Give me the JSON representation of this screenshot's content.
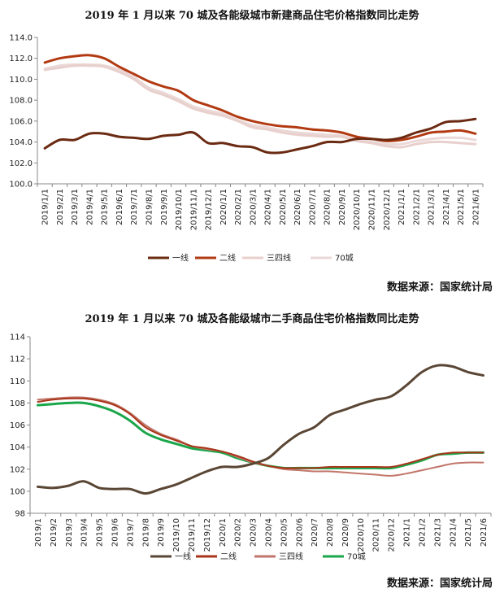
{
  "chart_data": [
    {
      "type": "line",
      "title": "2019 年 1 月以来 70 城及各能级城市新建商品住宅价格指数同比走势",
      "source": "数据来源：国家统计局",
      "xlabel": "",
      "ylabel": "",
      "ylim": [
        100.0,
        114.0
      ],
      "yticks": [
        "100.0",
        "102.0",
        "104.0",
        "106.0",
        "108.0",
        "110.0",
        "112.0",
        "114.0"
      ],
      "x": [
        "2019/1/1",
        "2019/2/1",
        "2019/3/1",
        "2019/4/1",
        "2019/5/1",
        "2019/6/1",
        "2019/7/1",
        "2019/8/1",
        "2019/9/1",
        "2019/10/1",
        "2019/11/1",
        "2019/12/1",
        "2020/1/1",
        "2020/2/1",
        "2020/3/1",
        "2020/4/1",
        "2020/5/1",
        "2020/6/1",
        "2020/7/1",
        "2020/8/1",
        "2020/9/1",
        "2020/10/1",
        "2020/11/1",
        "2020/12/1",
        "2021/1/1",
        "2021/2/1",
        "2021/3/1",
        "2021/4/1",
        "2021/5/1",
        "2021/6/1"
      ],
      "grid": false,
      "legend_position": "bottom",
      "series": [
        {
          "name": "一线",
          "color": "#6b2a12",
          "width": 3,
          "values": [
            103.4,
            104.2,
            104.2,
            104.8,
            104.8,
            104.5,
            104.4,
            104.3,
            104.6,
            104.7,
            104.9,
            103.9,
            103.9,
            103.6,
            103.5,
            103.0,
            103.0,
            103.3,
            103.6,
            104.0,
            104.0,
            104.3,
            104.3,
            104.2,
            104.4,
            104.9,
            105.3,
            105.9,
            106.0,
            106.2
          ]
        },
        {
          "name": "二线",
          "color": "#b23a12",
          "width": 3,
          "values": [
            111.6,
            112.0,
            112.2,
            112.3,
            112.0,
            111.2,
            110.5,
            109.8,
            109.3,
            108.9,
            108.0,
            107.5,
            107.0,
            106.4,
            106.0,
            105.7,
            105.5,
            105.4,
            105.2,
            105.1,
            104.9,
            104.5,
            104.3,
            104.1,
            104.2,
            104.5,
            104.9,
            105.0,
            105.1,
            104.8
          ]
        },
        {
          "name": "三四线",
          "color": "#e8d0cd",
          "width": 3,
          "values": [
            110.9,
            111.1,
            111.3,
            111.3,
            111.2,
            110.7,
            110.0,
            109.0,
            108.5,
            107.9,
            107.2,
            106.8,
            106.5,
            106.0,
            105.4,
            105.2,
            104.9,
            104.7,
            104.6,
            104.5,
            104.5,
            104.1,
            103.9,
            103.6,
            103.5,
            103.8,
            104.0,
            104.0,
            103.9,
            103.8
          ]
        },
        {
          "name": "70城",
          "color": "#ead9d8",
          "width": 3,
          "values": [
            111.0,
            111.3,
            111.4,
            111.4,
            111.3,
            110.9,
            110.2,
            109.2,
            108.7,
            108.1,
            107.4,
            107.0,
            106.7,
            106.1,
            105.6,
            105.4,
            105.1,
            104.9,
            104.8,
            104.7,
            104.6,
            104.2,
            104.0,
            103.8,
            103.8,
            104.1,
            104.3,
            104.4,
            104.4,
            104.2
          ]
        }
      ]
    },
    {
      "type": "line",
      "title": "2019 年 1 月以来 70 城及各能级城市二手商品住宅价格指数同比走势",
      "source": "数据来源：国家统计局",
      "xlabel": "",
      "ylabel": "",
      "ylim": [
        98,
        114
      ],
      "yticks": [
        "98",
        "100",
        "102",
        "104",
        "106",
        "108",
        "110",
        "112",
        "114"
      ],
      "x": [
        "2019/1",
        "2019/2",
        "2019/3",
        "2019/4",
        "2019/5",
        "2019/6",
        "2019/7",
        "2019/8",
        "2019/9",
        "2019/10",
        "2019/11",
        "2019/12",
        "2020/1",
        "2020/2",
        "2020/3",
        "2020/4",
        "2020/5",
        "2020/6",
        "2020/7",
        "2020/8",
        "2020/9",
        "2020/10",
        "2020/11",
        "2020/12",
        "2021/1",
        "2021/2",
        "2021/3",
        "2021/4",
        "2021/5",
        "2021/6"
      ],
      "grid": false,
      "legend_position": "bottom",
      "series": [
        {
          "name": "一线",
          "color": "#5a4634",
          "width": 3,
          "values": [
            100.4,
            100.3,
            100.5,
            100.9,
            100.3,
            100.2,
            100.2,
            99.8,
            100.2,
            100.6,
            101.2,
            101.8,
            102.2,
            102.2,
            102.5,
            103.0,
            104.2,
            105.2,
            105.8,
            106.9,
            107.4,
            107.9,
            108.3,
            108.6,
            109.6,
            110.8,
            111.4,
            111.3,
            110.8,
            110.5
          ]
        },
        {
          "name": "二线",
          "color": "#a8351a",
          "width": 2,
          "values": [
            108.1,
            108.3,
            108.4,
            108.4,
            108.2,
            107.8,
            107.0,
            105.8,
            105.1,
            104.6,
            104.1,
            103.9,
            103.6,
            103.2,
            102.7,
            102.3,
            102.1,
            102.1,
            102.1,
            102.2,
            102.2,
            102.2,
            102.2,
            102.2,
            102.5,
            102.9,
            103.3,
            103.5,
            103.5,
            103.5
          ]
        },
        {
          "name": "三四线",
          "color": "#c2766a",
          "width": 2,
          "values": [
            108.3,
            108.4,
            108.5,
            108.5,
            108.3,
            107.9,
            107.1,
            106.0,
            105.2,
            104.7,
            104.1,
            103.8,
            103.6,
            103.1,
            102.6,
            102.3,
            102.0,
            101.9,
            101.8,
            101.8,
            101.7,
            101.6,
            101.5,
            101.4,
            101.6,
            101.9,
            102.2,
            102.5,
            102.6,
            102.6
          ]
        },
        {
          "name": "70城",
          "color": "#1aa64a",
          "width": 3,
          "values": [
            107.8,
            107.9,
            108.0,
            108.0,
            107.7,
            107.2,
            106.4,
            105.3,
            104.7,
            104.3,
            103.9,
            103.7,
            103.5,
            103.0,
            102.6,
            102.3,
            102.1,
            102.1,
            102.1,
            102.1,
            102.1,
            102.1,
            102.1,
            102.1,
            102.4,
            102.8,
            103.3,
            103.4,
            103.5,
            103.5
          ]
        }
      ]
    }
  ]
}
